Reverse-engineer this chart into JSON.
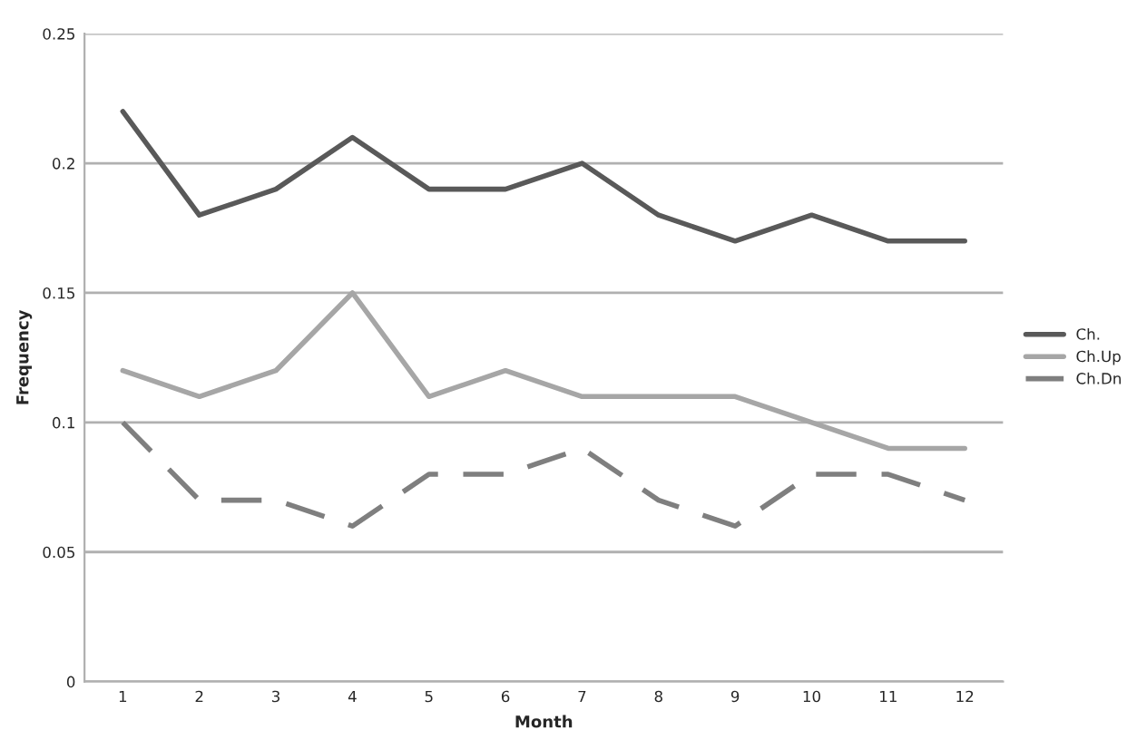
{
  "chart_data": {
    "type": "line",
    "xlabel": "Month",
    "ylabel": "Frequency",
    "categories": [
      "1",
      "2",
      "3",
      "4",
      "5",
      "6",
      "7",
      "8",
      "9",
      "10",
      "11",
      "12"
    ],
    "series": [
      {
        "name": "Ch.",
        "color": "#595959",
        "line_style": "solid",
        "values": [
          0.22,
          0.18,
          0.19,
          0.21,
          0.19,
          0.19,
          0.2,
          0.18,
          0.17,
          0.18,
          0.17,
          0.17
        ]
      },
      {
        "name": "Ch.Up",
        "color": "#a6a6a6",
        "line_style": "solid",
        "values": [
          0.12,
          0.11,
          0.12,
          0.15,
          0.11,
          0.12,
          0.11,
          0.11,
          0.11,
          0.1,
          0.09,
          0.09
        ]
      },
      {
        "name": "Ch.Dn",
        "color": "#7f7f7f",
        "line_style": "dashed",
        "values": [
          0.1,
          0.07,
          0.07,
          0.06,
          0.08,
          0.08,
          0.09,
          0.07,
          0.06,
          0.08,
          0.08,
          0.07
        ]
      }
    ],
    "ylim": [
      0,
      0.25
    ],
    "yticks": [
      {
        "value": 0,
        "label": "0"
      },
      0.05,
      {
        "value": 0.1,
        "label": "0.1"
      },
      0.15,
      {
        "value": 0.2,
        "label": "0.2"
      },
      0.25
    ],
    "grid": "y",
    "legend": "right",
    "marker": "none"
  }
}
